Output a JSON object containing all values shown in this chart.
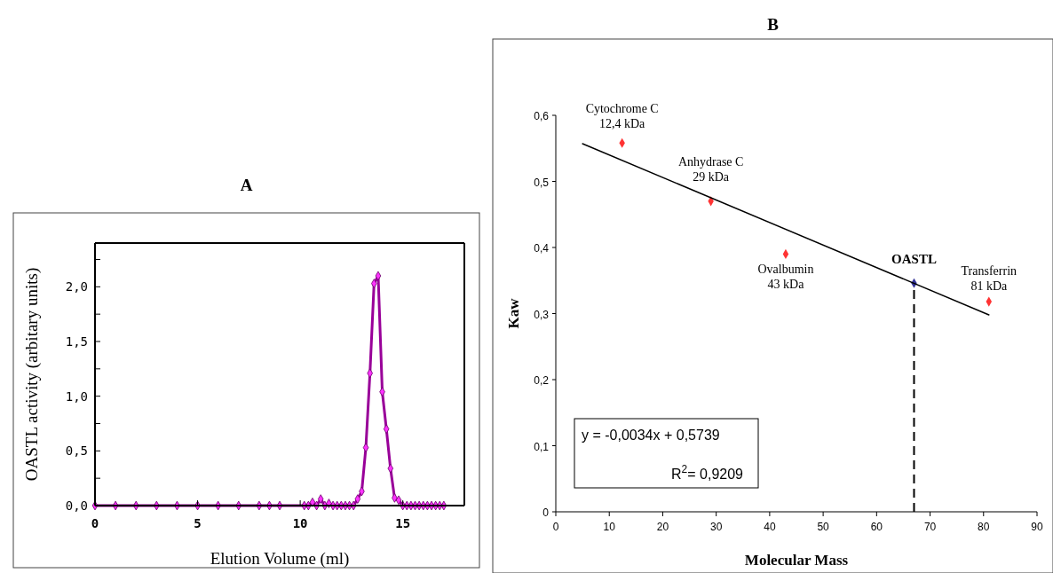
{
  "chart_data": [
    {
      "type": "line",
      "title": "A",
      "xlabel": "Elution Volume (ml)",
      "ylabel": "OASTL activity (arbitary units)",
      "xlim": [
        0,
        18
      ],
      "xticks": [
        0,
        5,
        10,
        15
      ],
      "ylim": [
        0,
        2.4
      ],
      "yticks": [
        {
          "value": 0,
          "label": "0,0"
        },
        {
          "value": 0.25,
          "label": null
        },
        {
          "value": 0.5,
          "label": "0,5"
        },
        {
          "value": 0.75,
          "label": null
        },
        {
          "value": 1,
          "label": "1,0"
        },
        {
          "value": 1.25,
          "label": null
        },
        {
          "value": 1.5,
          "label": "1,5"
        },
        {
          "value": 1.75,
          "label": null
        },
        {
          "value": 2,
          "label": "2,0"
        },
        {
          "value": 2.25,
          "label": null
        }
      ],
      "series": [
        {
          "color": "#990099",
          "x": [
            0,
            1,
            2,
            3,
            4,
            5,
            6,
            7,
            8,
            8.5,
            9,
            10.2,
            10.4,
            10.6,
            10.8,
            11.0,
            11.2,
            11.4,
            11.6,
            11.8,
            12.0,
            12.2,
            12.4,
            12.6,
            12.8,
            13.0,
            13.2,
            13.4,
            13.6,
            13.8,
            14.0,
            14.2,
            14.4,
            14.6,
            14.8,
            15.0,
            15.2,
            15.4,
            15.6,
            15.8,
            16.0,
            16.2,
            16.4,
            16.6,
            16.8,
            17.0
          ],
          "values": [
            0,
            0,
            0,
            0,
            0,
            0,
            0,
            0,
            0,
            0,
            0,
            0,
            0,
            0.03,
            0,
            0.06,
            0,
            0.02,
            0,
            0,
            0,
            0,
            0,
            0,
            0.06,
            0.13,
            0.53,
            1.21,
            2.03,
            2.1,
            1.04,
            0.7,
            0.34,
            0.07,
            0.05,
            0,
            0,
            0,
            0,
            0,
            0,
            0,
            0,
            0,
            0,
            0
          ]
        }
      ],
      "marker": "diamond",
      "line_style": "solid",
      "grid": false
    },
    {
      "type": "scatter",
      "title": "B",
      "xlabel": "Molecular Mass",
      "ylabel": "Kaw",
      "xlim": [
        0,
        90
      ],
      "xticks": [
        0,
        10,
        20,
        30,
        40,
        50,
        60,
        70,
        80,
        90
      ],
      "ylim": [
        0,
        0.6
      ],
      "yticks": [
        0,
        {
          "value": 0.1,
          "label": "0,1"
        },
        {
          "value": 0.2,
          "label": "0,2"
        },
        {
          "value": 0.3,
          "label": "0,3"
        },
        {
          "value": 0.4,
          "label": "0,4"
        },
        {
          "value": 0.5,
          "label": "0,5"
        },
        {
          "value": 0.6,
          "label": "0,6"
        }
      ],
      "series": [
        {
          "color": "#ff3333",
          "x": [
            12.4,
            29,
            43,
            81
          ],
          "values": [
            0.558,
            0.47,
            0.39,
            0.318
          ]
        },
        {
          "name": "OASTL",
          "color": "#333399",
          "x": [
            67
          ],
          "values": [
            0.346
          ]
        },
        {
          "type": "line",
          "color": "#000000",
          "marker": "none",
          "x": [
            5,
            81
          ],
          "values": [
            0.557,
            0.298
          ]
        }
      ],
      "ref_lines": [
        {
          "axis": "x",
          "value": 67,
          "color": "#000000",
          "line_style": "dashed"
        }
      ],
      "annotations": [
        {
          "text": "Cytochrome C\n12,4 kDa",
          "x": 12.4,
          "y": 0.558
        },
        {
          "text": "Anhydrase C\n29 kDa",
          "x": 29,
          "y": 0.47
        },
        {
          "text": "Ovalbumin\n43 kDa",
          "x": 43,
          "y": 0.39
        },
        {
          "text": "Transferrin\n81 kDa",
          "x": 81,
          "y": 0.318
        },
        "y = -0,0034x + 0,5739",
        "R$^{2}$= 0,9209"
      ],
      "marker": "diamond",
      "grid": false
    }
  ]
}
